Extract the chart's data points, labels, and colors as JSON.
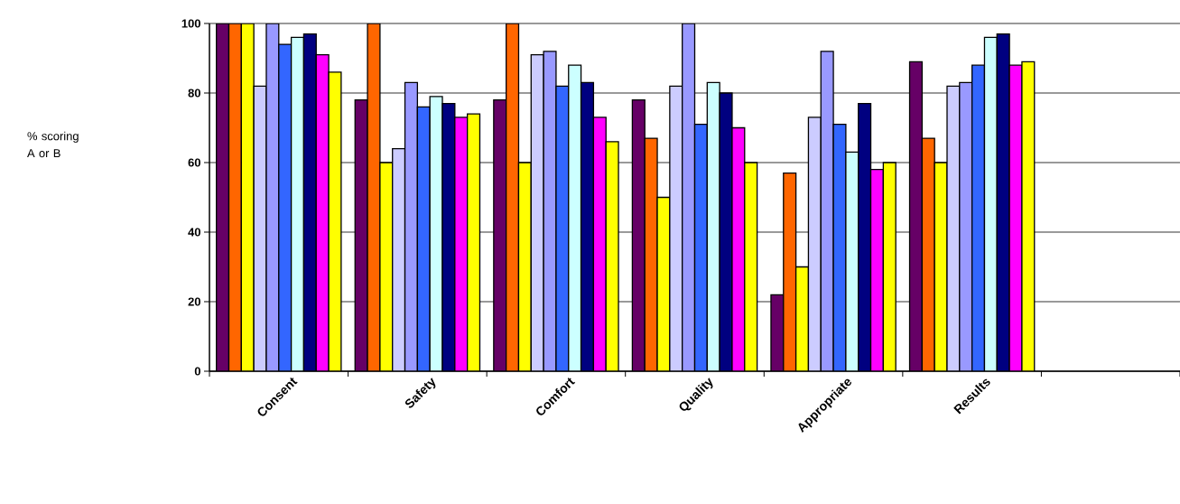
{
  "chart_data": {
    "type": "bar",
    "annotations": [
      "% scoring A or B"
    ],
    "categories": [
      "Consent",
      "Safety",
      "Comfort",
      "Quality",
      "Appropriate",
      "Results",
      null
    ],
    "series": [
      {
        "color": "#660066",
        "values": [
          100,
          78,
          78,
          78,
          22,
          89,
          null
        ]
      },
      {
        "color": "#ff6600",
        "values": [
          100,
          100,
          100,
          67,
          57,
          67,
          null
        ]
      },
      {
        "color": "#ffff00",
        "values": [
          100,
          60,
          60,
          50,
          30,
          60,
          null
        ]
      },
      {
        "color": "#ccccff",
        "values": [
          82,
          64,
          91,
          82,
          73,
          82,
          null
        ]
      },
      {
        "color": "#9999ff",
        "values": [
          100,
          83,
          92,
          100,
          92,
          83,
          null
        ]
      },
      {
        "color": "#3366ff",
        "values": [
          94,
          76,
          82,
          71,
          71,
          88,
          null
        ]
      },
      {
        "color": "#ccffff",
        "values": [
          96,
          79,
          88,
          83,
          63,
          96,
          null
        ]
      },
      {
        "color": "#000080",
        "values": [
          97,
          77,
          83,
          80,
          77,
          97,
          null
        ]
      },
      {
        "color": "#ff00ff",
        "values": [
          91,
          73,
          73,
          70,
          58,
          88,
          null
        ]
      },
      {
        "color": "#ffff00",
        "values": [
          86,
          74,
          66,
          60,
          60,
          89,
          null
        ]
      }
    ],
    "ylim": [
      0,
      100
    ],
    "yticks": [
      0,
      20,
      40,
      60,
      80,
      100
    ],
    "grid": "y"
  }
}
